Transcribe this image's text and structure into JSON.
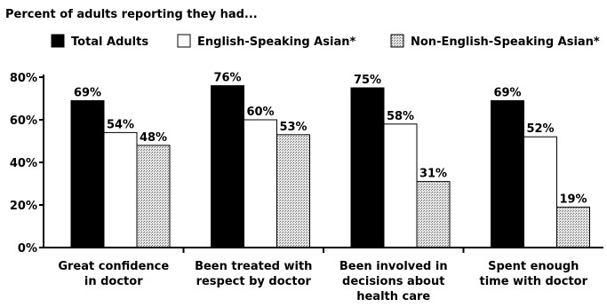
{
  "chart_data": {
    "type": "bar",
    "title": "Percent of adults reporting they had...",
    "categories": [
      [
        "Great confidence",
        "in doctor"
      ],
      [
        "Been treated with",
        "respect by doctor"
      ],
      [
        "Been involved in",
        "decisions about",
        "health care"
      ],
      [
        "Spent enough",
        "time with doctor"
      ]
    ],
    "series": [
      {
        "name": "Total Adults",
        "values": [
          69,
          76,
          75,
          69
        ],
        "fill": "#000000",
        "pattern": "solid"
      },
      {
        "name": "English-Speaking Asian*",
        "values": [
          54,
          60,
          58,
          52
        ],
        "fill": "#ffffff",
        "pattern": "solid"
      },
      {
        "name": "Non-English-Speaking Asian*",
        "values": [
          48,
          53,
          31,
          19
        ],
        "fill": "#d8d8d8",
        "pattern": "stipple"
      }
    ],
    "value_suffix": "%",
    "ylim": [
      0,
      80
    ],
    "yticks": [
      0,
      20,
      40,
      60,
      80
    ],
    "ytick_labels": [
      "0%",
      "20%",
      "40%",
      "60%",
      "80%"
    ],
    "legend_position": "top",
    "grid": false
  }
}
